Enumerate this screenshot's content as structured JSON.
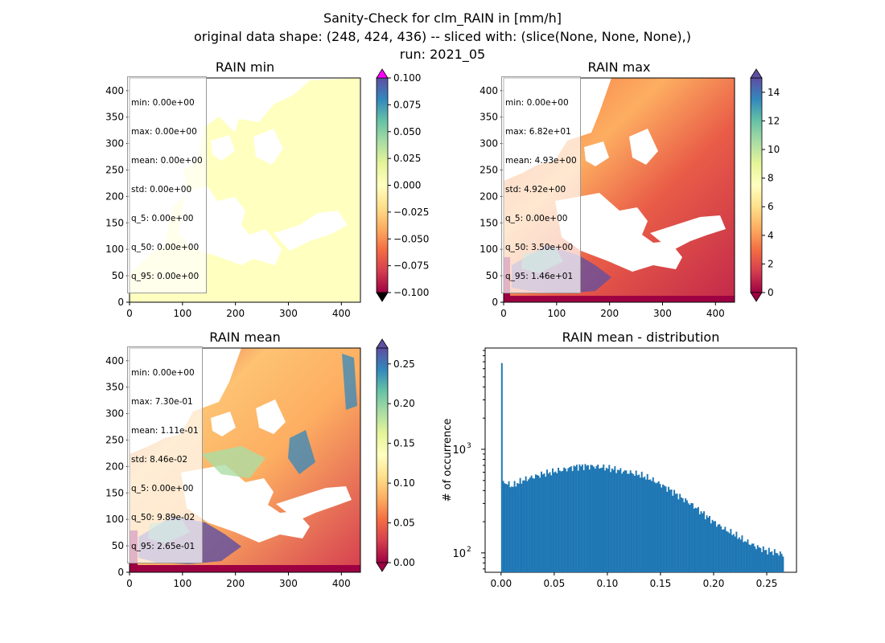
{
  "figure": {
    "title_lines": [
      "Sanity-Check for clm_RAIN in [mm/h]",
      "original data shape: (248, 424, 436) -- sliced with: (slice(None, None, None),)",
      "run: 2021_05"
    ]
  },
  "chart_data": [
    {
      "type": "heatmap",
      "title": "RAIN min",
      "xlim": [
        0,
        436
      ],
      "ylim": [
        0,
        424
      ],
      "xticks": [
        0,
        100,
        200,
        300,
        400
      ],
      "yticks": [
        0,
        50,
        100,
        150,
        200,
        250,
        300,
        350,
        400
      ],
      "colormap": "Spectral",
      "colorbar": {
        "range": [
          -0.1,
          0.1
        ],
        "extend": "both",
        "ticks": [
          "0.100",
          "0.075",
          "0.050",
          "0.025",
          "0.000",
          "−0.025",
          "−0.050",
          "−0.075",
          "−0.100"
        ]
      },
      "stats": [
        "min: 0.00e+00",
        "max: 0.00e+00",
        "mean: 0.00e+00",
        "std: 0.00e+00",
        "q_5: 0.00e+00",
        "q_50: 0.00e+00",
        "q_95: 0.00e+00"
      ]
    },
    {
      "type": "heatmap",
      "title": "RAIN max",
      "xlim": [
        0,
        436
      ],
      "ylim": [
        0,
        424
      ],
      "xticks": [
        0,
        100,
        200,
        300,
        400
      ],
      "yticks": [
        0,
        50,
        100,
        150,
        200,
        250,
        300,
        350,
        400
      ],
      "colormap": "Spectral",
      "colorbar": {
        "range": [
          0,
          15
        ],
        "extend": "both",
        "ticks": [
          "14",
          "12",
          "10",
          "8",
          "6",
          "4",
          "2",
          "0"
        ]
      },
      "stats": [
        "min: 0.00e+00",
        "max: 6.82e+01",
        "mean: 4.93e+00",
        "std: 4.92e+00",
        "q_5: 0.00e+00",
        "q_50: 3.50e+00",
        "q_95: 1.46e+01"
      ]
    },
    {
      "type": "heatmap",
      "title": "RAIN mean",
      "xlim": [
        0,
        436
      ],
      "ylim": [
        0,
        424
      ],
      "xticks": [
        0,
        100,
        200,
        300,
        400
      ],
      "yticks": [
        0,
        50,
        100,
        150,
        200,
        250,
        300,
        350,
        400
      ],
      "colormap": "Spectral",
      "colorbar": {
        "range": [
          0,
          0.27
        ],
        "extend": "both",
        "ticks": [
          "0.25",
          "0.20",
          "0.15",
          "0.10",
          "0.05",
          "0.00"
        ]
      },
      "stats": [
        "min: 0.00e+00",
        "max: 7.30e-01",
        "mean: 1.11e-01",
        "std: 8.46e-02",
        "q_5: 0.00e+00",
        "q_50: 9.89e-02",
        "q_95: 2.65e-01"
      ]
    },
    {
      "type": "bar",
      "title": "RAIN mean - distribution",
      "ylabel": "# of occurrence",
      "yscale": "log",
      "xlim": [
        -0.015,
        0.278
      ],
      "ylim": [
        65,
        9500
      ],
      "xticks": [
        "0.00",
        "0.05",
        "0.10",
        "0.15",
        "0.20",
        "0.25"
      ],
      "color": "#1f77b4",
      "profile": [
        [
          0.0,
          6800
        ],
        [
          0.0016,
          470
        ],
        [
          0.004,
          480
        ],
        [
          0.01,
          440
        ],
        [
          0.02,
          500
        ],
        [
          0.03,
          540
        ],
        [
          0.04,
          580
        ],
        [
          0.05,
          610
        ],
        [
          0.06,
          640
        ],
        [
          0.07,
          680
        ],
        [
          0.08,
          690
        ],
        [
          0.09,
          680
        ],
        [
          0.1,
          660
        ],
        [
          0.11,
          630
        ],
        [
          0.12,
          600
        ],
        [
          0.13,
          570
        ],
        [
          0.14,
          520
        ],
        [
          0.15,
          460
        ],
        [
          0.16,
          400
        ],
        [
          0.17,
          340
        ],
        [
          0.18,
          290
        ],
        [
          0.19,
          240
        ],
        [
          0.2,
          200
        ],
        [
          0.21,
          170
        ],
        [
          0.22,
          150
        ],
        [
          0.23,
          130
        ],
        [
          0.24,
          115
        ],
        [
          0.25,
          105
        ],
        [
          0.26,
          100
        ],
        [
          0.266,
          95
        ]
      ]
    }
  ]
}
